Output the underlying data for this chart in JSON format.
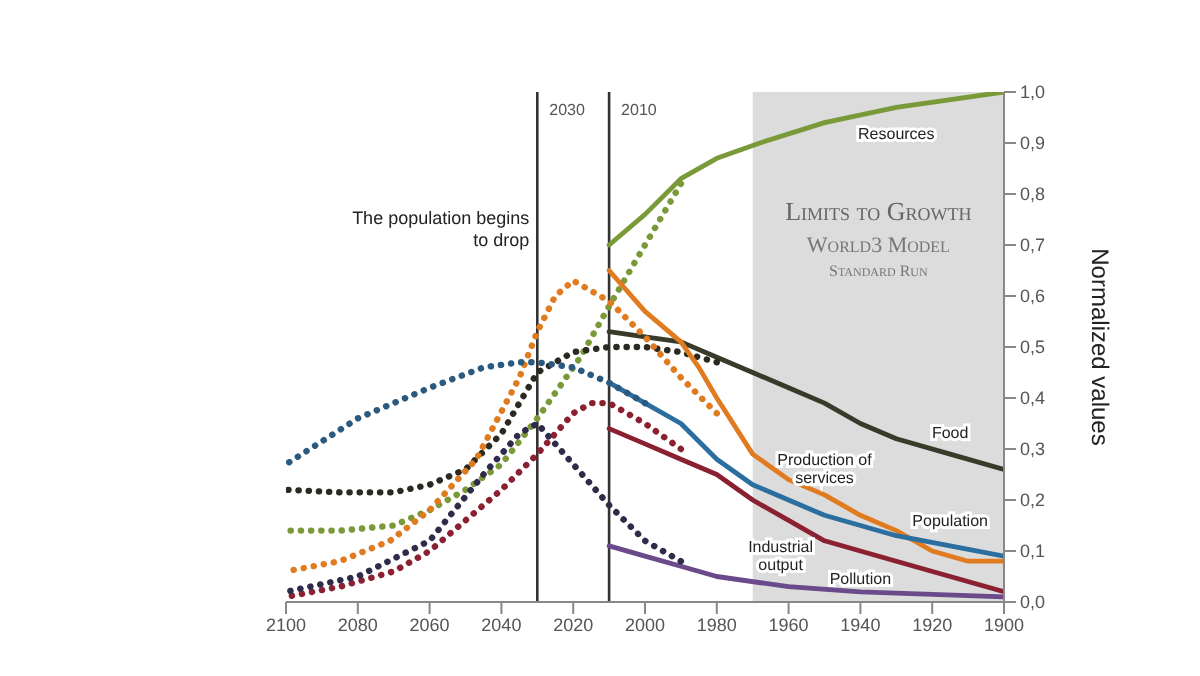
{
  "chart_data": {
    "type": "line",
    "title": "Limits to Growth",
    "subtitle": "World3 Model",
    "ylabel": "Normalized values",
    "annotations": [
      "Standard Run",
      "The population begins to drop"
    ],
    "xlim": [
      2100,
      1900
    ],
    "xticks": [
      1900,
      1920,
      1940,
      1960,
      1980,
      2000,
      2020,
      2040,
      2060,
      2080,
      2100
    ],
    "ylim": [
      0,
      1
    ],
    "yticks": [
      {
        "value": 0,
        "label": "0,0"
      },
      {
        "value": 0.1,
        "label": "0,1"
      },
      {
        "value": 0.2,
        "label": "0,2"
      },
      {
        "value": 0.3,
        "label": "0,3"
      },
      {
        "value": 0.4,
        "label": "0,4"
      },
      {
        "value": 0.5,
        "label": "0,5"
      },
      {
        "value": 0.6,
        "label": "0,6"
      },
      {
        "value": 0.7,
        "label": "0,7"
      },
      {
        "value": 0.8,
        "label": "0,8"
      },
      {
        "value": 0.9,
        "label": "0,9"
      },
      {
        "value": 1,
        "label": "1,0"
      }
    ],
    "bands": [
      {
        "axis": "x",
        "from": 1970,
        "to": 1900,
        "color": "#dcdcdc"
      }
    ],
    "ref_lines": [
      {
        "axis": "x",
        "value": 2010,
        "label": "2010",
        "color": "#333333"
      },
      {
        "axis": "x",
        "value": 2030,
        "label": "2030",
        "color": "#333333"
      }
    ],
    "grid": false,
    "legend": false,
    "marker": "none",
    "series": [
      {
        "name": "Resources",
        "color": "#7a9a3a",
        "line_style": "solid",
        "x": [
          1900,
          1930,
          1950,
          1968,
          1980,
          1990,
          2000,
          2010
        ],
        "values": [
          1.0,
          0.97,
          0.94,
          0.9,
          0.87,
          0.83,
          0.76,
          0.7
        ]
      },
      {
        "color": "#7a9a3a",
        "line_style": "dotted",
        "x": [
          1990,
          2000,
          2010,
          2018,
          2030,
          2040,
          2050,
          2060,
          2070,
          2085,
          2100
        ],
        "values": [
          0.82,
          0.7,
          0.58,
          0.48,
          0.36,
          0.27,
          0.22,
          0.18,
          0.15,
          0.14,
          0.14
        ]
      },
      {
        "name": "Food",
        "color": "#3a3a2a",
        "line_style": "solid",
        "x": [
          1900,
          1915,
          1930,
          1940,
          1950,
          1960,
          1970,
          1980,
          1990,
          2000,
          2010
        ],
        "values": [
          0.26,
          0.29,
          0.32,
          0.35,
          0.39,
          0.42,
          0.45,
          0.48,
          0.51,
          0.52,
          0.53
        ]
      },
      {
        "color": "#2a2a22",
        "line_style": "dotted",
        "x": [
          1980,
          1990,
          2000,
          2010,
          2020,
          2030,
          2040,
          2050,
          2060,
          2070,
          2085,
          2100
        ],
        "values": [
          0.47,
          0.49,
          0.5,
          0.5,
          0.49,
          0.45,
          0.33,
          0.26,
          0.23,
          0.215,
          0.215,
          0.22
        ]
      },
      {
        "name": "Production of services",
        "color": "#e07b20",
        "line_style": "solid",
        "x": [
          1900,
          1910,
          1920,
          1930,
          1940,
          1950,
          1960,
          1970,
          1980,
          1985,
          1990,
          2000,
          2010
        ],
        "values": [
          0.08,
          0.08,
          0.1,
          0.14,
          0.17,
          0.21,
          0.24,
          0.29,
          0.4,
          0.46,
          0.51,
          0.57,
          0.65
        ]
      },
      {
        "color": "#e07b20",
        "line_style": "dotted",
        "x": [
          1980,
          1990,
          2000,
          2010,
          2020,
          2025,
          2030,
          2035,
          2047,
          2060,
          2071,
          2085,
          2100
        ],
        "values": [
          0.37,
          0.44,
          0.52,
          0.59,
          0.63,
          0.6,
          0.53,
          0.44,
          0.28,
          0.18,
          0.12,
          0.08,
          0.06
        ]
      },
      {
        "name": "Population",
        "color": "#2a6fa0",
        "line_style": "solid",
        "x": [
          1900,
          1915,
          1930,
          1940,
          1950,
          1960,
          1970,
          1980,
          1990,
          2000,
          2010
        ],
        "values": [
          0.09,
          0.11,
          0.13,
          0.15,
          0.17,
          0.2,
          0.23,
          0.28,
          0.35,
          0.39,
          0.43
        ]
      },
      {
        "color": "#2a5a80",
        "line_style": "dotted",
        "x": [
          2000,
          2010,
          2020,
          2030,
          2035,
          2045,
          2060,
          2080,
          2100
        ],
        "values": [
          0.39,
          0.43,
          0.46,
          0.47,
          0.47,
          0.46,
          0.42,
          0.36,
          0.27
        ]
      },
      {
        "name": "Industrial output",
        "color": "#8b2030",
        "line_style": "solid",
        "x": [
          1900,
          1915,
          1930,
          1940,
          1950,
          1960,
          1970,
          1980,
          1990,
          2000,
          2010
        ],
        "values": [
          0.02,
          0.05,
          0.08,
          0.1,
          0.12,
          0.16,
          0.2,
          0.25,
          0.28,
          0.31,
          0.34
        ]
      },
      {
        "color": "#8b2030",
        "line_style": "dotted",
        "x": [
          1990,
          2000,
          2010,
          2015,
          2020,
          2030,
          2040,
          2050,
          2060,
          2070,
          2085,
          2100
        ],
        "values": [
          0.3,
          0.35,
          0.39,
          0.39,
          0.37,
          0.29,
          0.22,
          0.16,
          0.1,
          0.06,
          0.03,
          0.01
        ]
      },
      {
        "name": "Pollution",
        "color": "#6a4a8a",
        "line_style": "solid",
        "x": [
          1900,
          1940,
          1960,
          1980,
          1990,
          2000,
          2010
        ],
        "values": [
          0.01,
          0.02,
          0.03,
          0.05,
          0.07,
          0.09,
          0.11
        ]
      },
      {
        "color": "#2e2c4a",
        "line_style": "dotted",
        "x": [
          1990,
          2000,
          2010,
          2020,
          2030,
          2035,
          2045,
          2060,
          2080,
          2100
        ],
        "values": [
          0.08,
          0.12,
          0.19,
          0.27,
          0.35,
          0.33,
          0.25,
          0.12,
          0.05,
          0.02
        ]
      }
    ]
  }
}
